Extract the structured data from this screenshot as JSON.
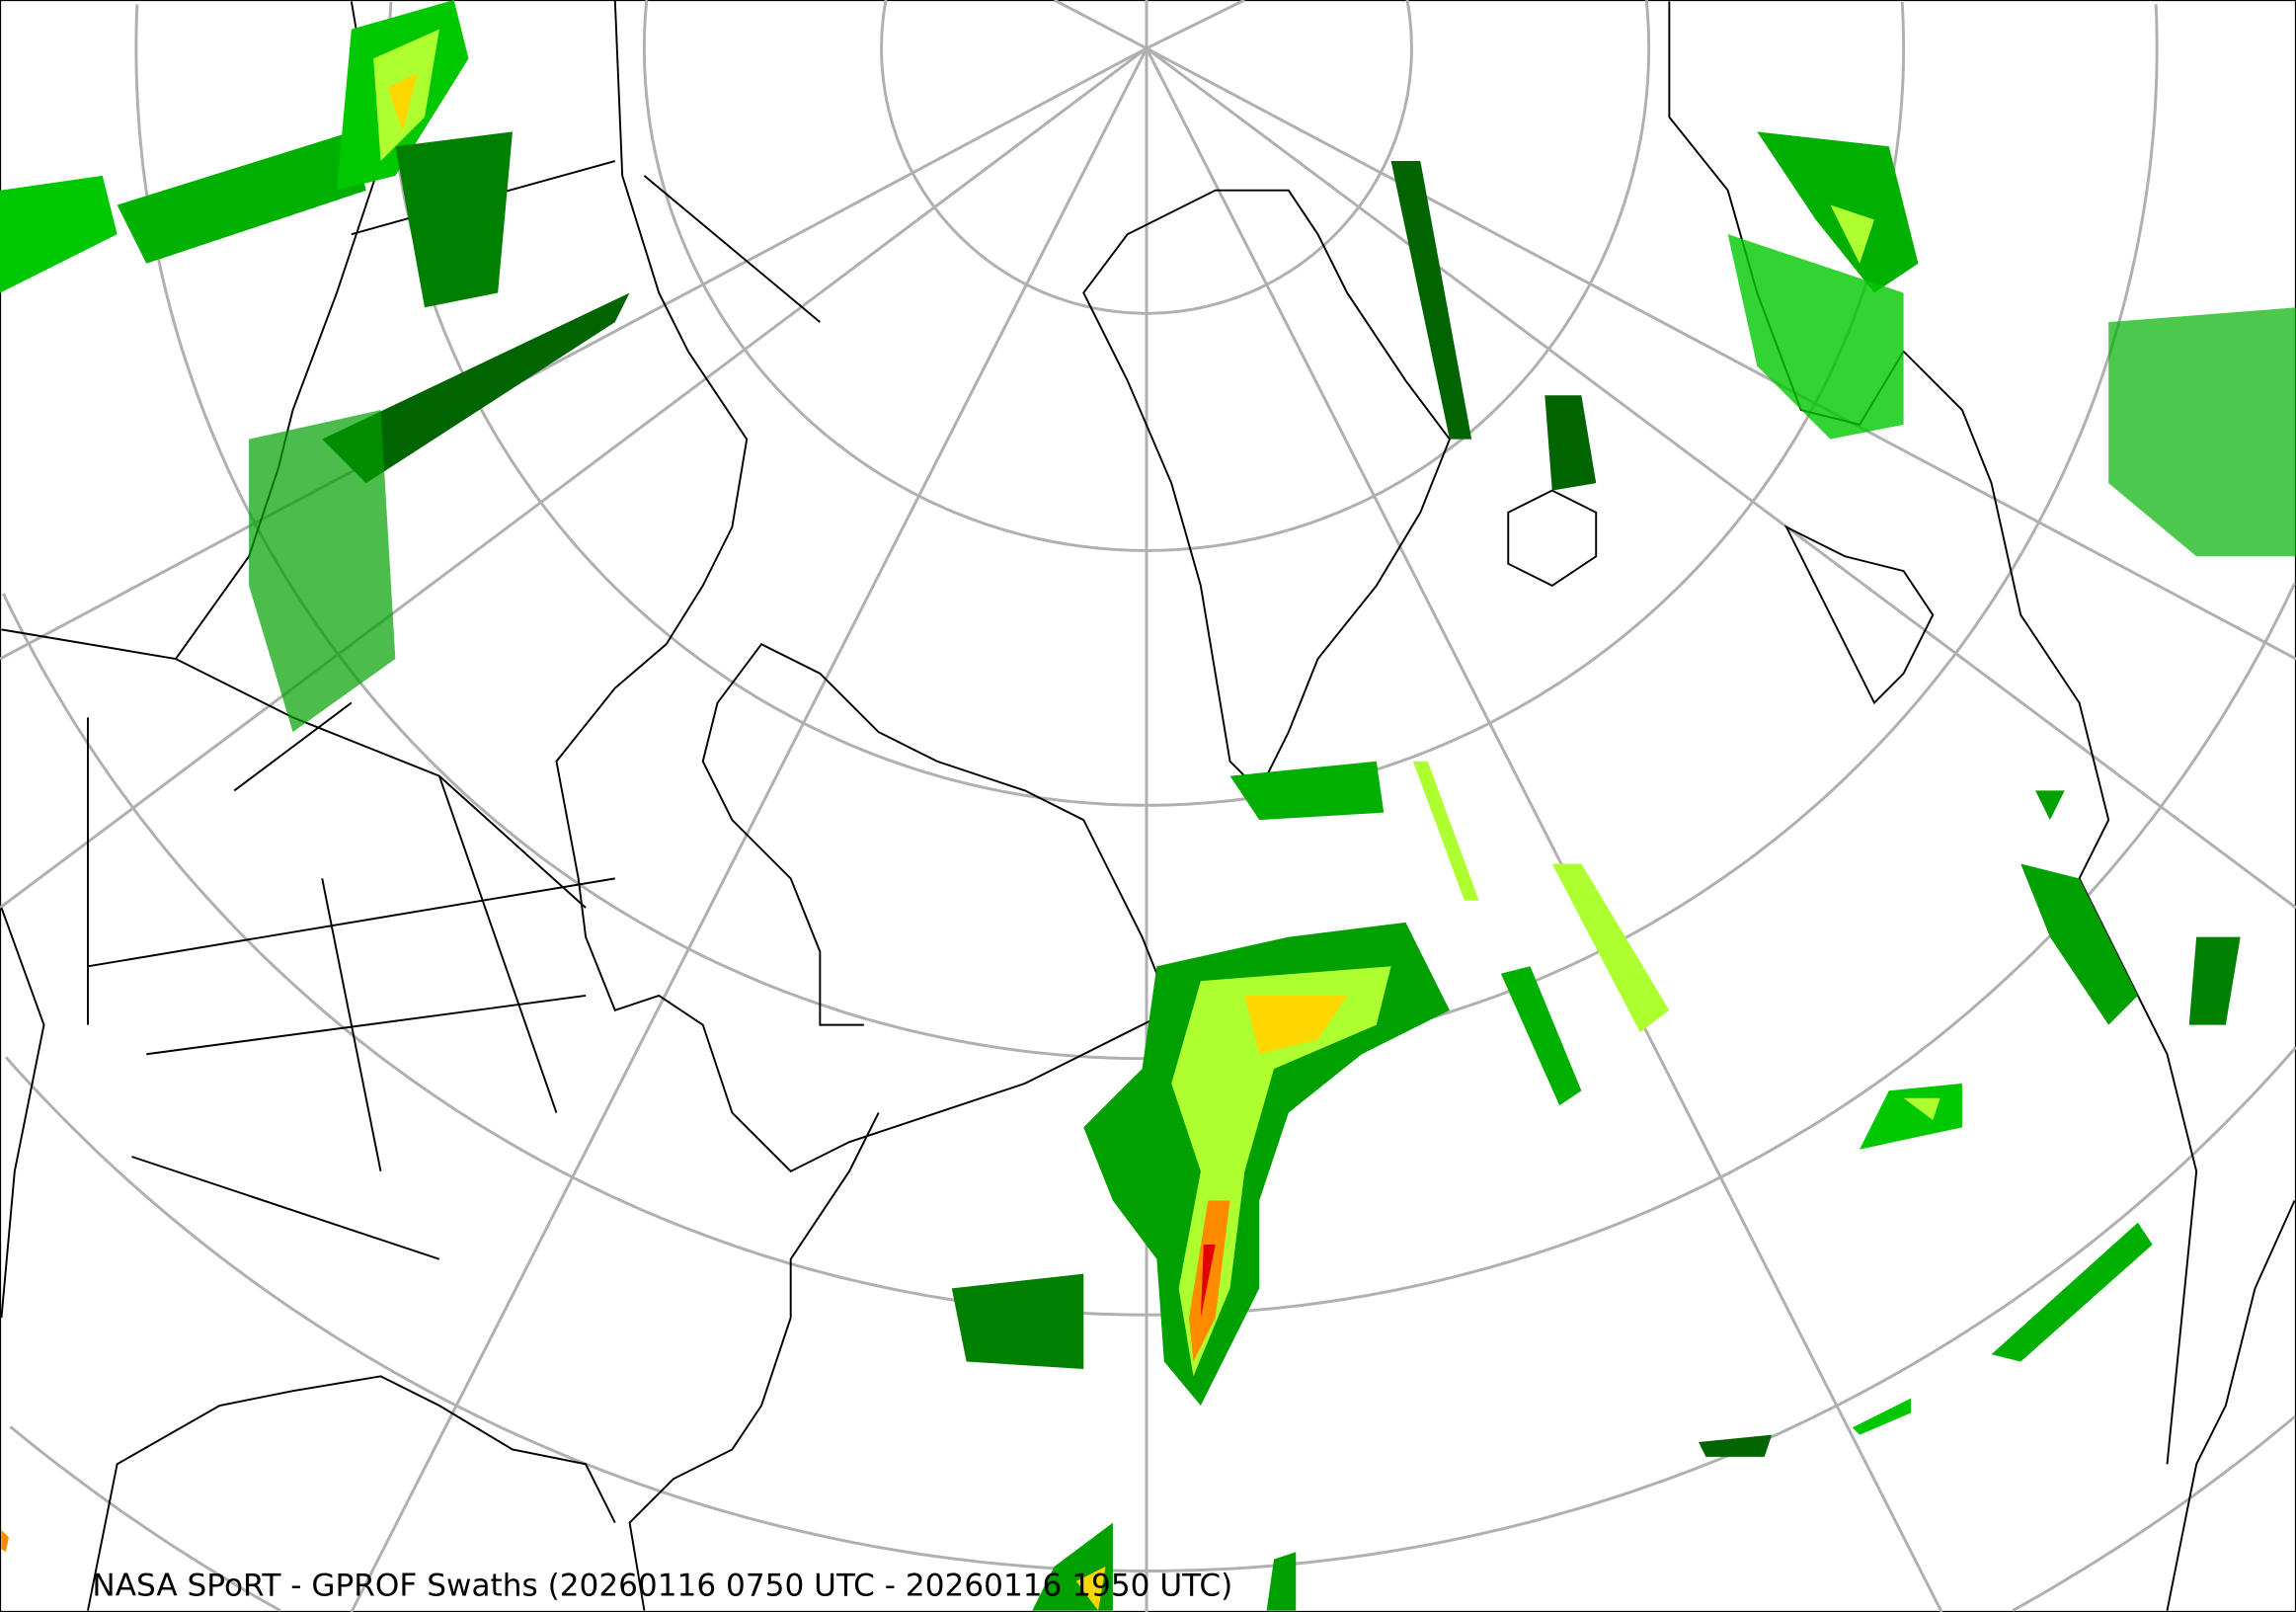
{
  "map": {
    "title": "NASA SPoRT - GPROF Swaths (20260116 0750 UTC - 20260116 1950 UTC)",
    "projection": "polar stereographic (North America / North Atlantic)",
    "graticule": true,
    "colors": {
      "light_precip": "#006400",
      "moderate_precip": "#00c800",
      "bright_precip": "#adff2f",
      "heavy_precip": "#ffd700",
      "very_heavy_precip": "#ff8c00",
      "extreme_precip": "#e00000",
      "graticule": "#b0b0b0",
      "coastline": "#000000"
    }
  }
}
